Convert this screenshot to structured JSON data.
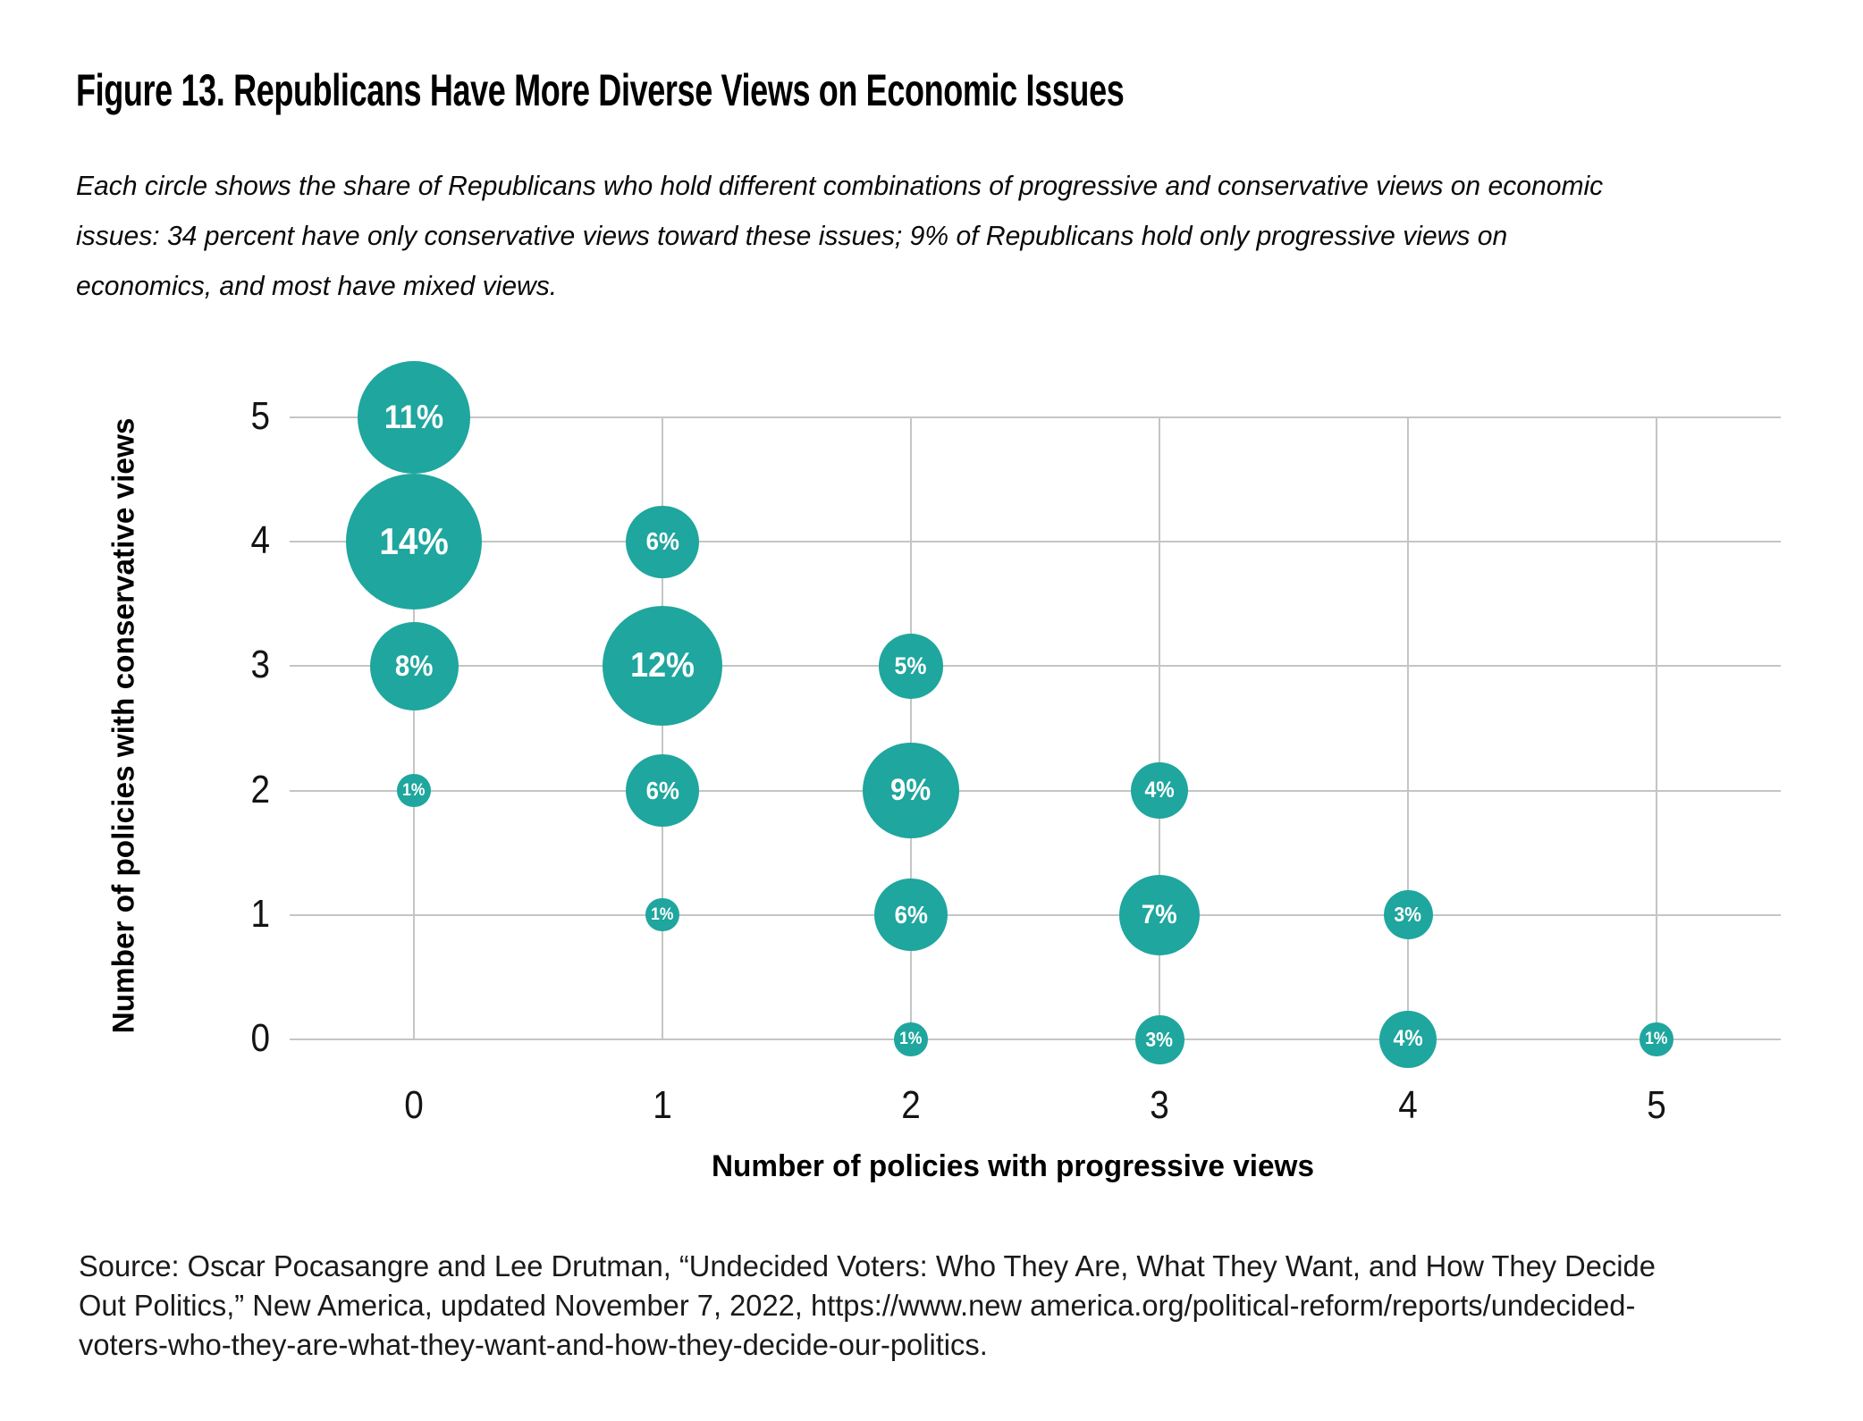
{
  "figure": {
    "title": "Figure 13. Republicans Have More Diverse Views on Economic Issues",
    "subtitle_lines": [
      "Each circle shows the share of Republicans who hold different combinations of progressive and conservative views on economic",
      "issues: 34 percent have only conservative views toward these issues; 9% of Republicans hold only progressive views on",
      "economics, and most have mixed views."
    ],
    "source_lines": [
      "Source: Oscar Pocasangre and Lee Drutman, “Undecided Voters: Who They Are, What They Want, and How They Decide",
      "Out Politics,” New America, updated November 7, 2022, https://www.new america.org/political-reform/reports/undecided-",
      "voters-who-they-are-what-they-want-and-how-they-decide-our-politics."
    ]
  },
  "chart_data": {
    "type": "scatter",
    "subtype": "bubble",
    "xlabel": "Number of policies with progressive views",
    "ylabel": "Number of policies with conservative views",
    "x_ticks": [
      "0",
      "1",
      "2",
      "3",
      "4",
      "5"
    ],
    "y_ticks": [
      "0",
      "1",
      "2",
      "3",
      "4",
      "5"
    ],
    "x_range_drawn": [
      -0.5,
      5.5
    ],
    "y_range_drawn": [
      0,
      5
    ],
    "grid": true,
    "legend": false,
    "value_unit": "%",
    "bubble_color": "#1fa69e",
    "bubble_label_color": "#ffffff",
    "gridline_color": "#c5c5c5",
    "points": [
      {
        "x": 0,
        "y": 5,
        "value": 11,
        "label": "11%"
      },
      {
        "x": 0,
        "y": 4,
        "value": 14,
        "label": "14%"
      },
      {
        "x": 1,
        "y": 4,
        "value": 6,
        "label": "6%"
      },
      {
        "x": 0,
        "y": 3,
        "value": 8,
        "label": "8%"
      },
      {
        "x": 1,
        "y": 3,
        "value": 12,
        "label": "12%"
      },
      {
        "x": 2,
        "y": 3,
        "value": 5,
        "label": "5%"
      },
      {
        "x": 0,
        "y": 2,
        "value": 1,
        "label": "1%"
      },
      {
        "x": 1,
        "y": 2,
        "value": 6,
        "label": "6%"
      },
      {
        "x": 2,
        "y": 2,
        "value": 9,
        "label": "9%"
      },
      {
        "x": 3,
        "y": 2,
        "value": 4,
        "label": "4%"
      },
      {
        "x": 1,
        "y": 1,
        "value": 1,
        "label": "1%"
      },
      {
        "x": 2,
        "y": 1,
        "value": 6,
        "label": "6%"
      },
      {
        "x": 3,
        "y": 1,
        "value": 7,
        "label": "7%"
      },
      {
        "x": 4,
        "y": 1,
        "value": 3,
        "label": "3%"
      },
      {
        "x": 2,
        "y": 0,
        "value": 1,
        "label": "1%"
      },
      {
        "x": 3,
        "y": 0,
        "value": 3,
        "label": "3%"
      },
      {
        "x": 4,
        "y": 0,
        "value": 4,
        "label": "4%"
      },
      {
        "x": 5,
        "y": 0,
        "value": 1,
        "label": "1%"
      }
    ]
  }
}
